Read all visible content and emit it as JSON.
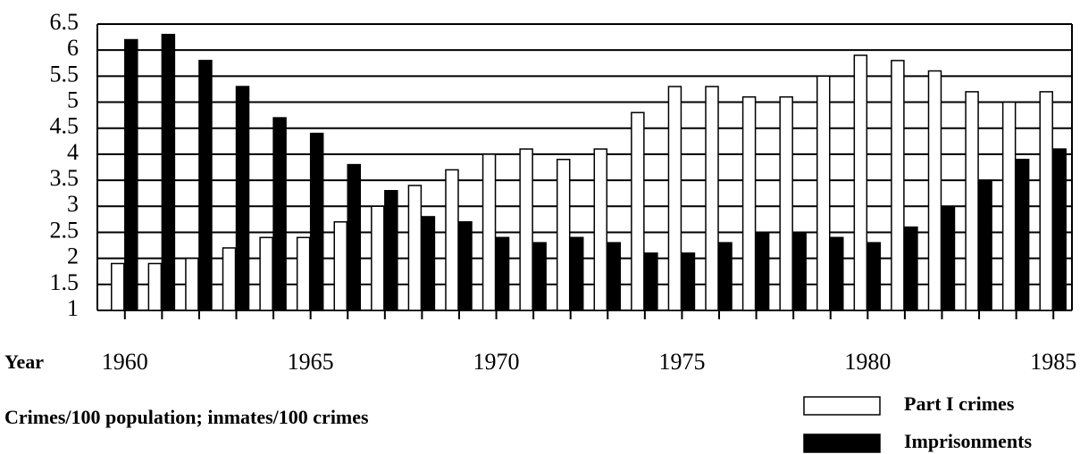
{
  "chart_data": {
    "type": "bar",
    "x_label": "Year",
    "note": "Crimes/100 population; inmates/100 crimes",
    "categories": [
      "1960",
      null,
      null,
      null,
      null,
      "1965",
      null,
      null,
      null,
      null,
      "1970",
      null,
      null,
      null,
      null,
      "1975",
      null,
      null,
      null,
      null,
      "1980",
      null,
      null,
      null,
      null,
      "1985"
    ],
    "series": [
      {
        "name": "Part I crimes",
        "color": "#ffffff",
        "values": [
          1.9,
          1.9,
          2.0,
          2.2,
          2.4,
          2.4,
          2.7,
          3.0,
          3.4,
          3.7,
          4.0,
          4.1,
          3.9,
          4.1,
          4.8,
          5.3,
          5.3,
          5.1,
          5.1,
          5.5,
          5.9,
          5.8,
          5.6,
          5.2,
          5.0,
          5.2
        ]
      },
      {
        "name": "Imprisonments",
        "color": "#000000",
        "values": [
          6.2,
          6.3,
          5.8,
          5.3,
          4.7,
          4.4,
          3.8,
          3.3,
          2.8,
          2.7,
          2.4,
          2.3,
          2.4,
          2.3,
          2.1,
          2.1,
          2.3,
          2.5,
          2.5,
          2.4,
          2.3,
          2.6,
          3.0,
          3.5,
          3.9,
          4.1
        ]
      }
    ],
    "ylim": [
      1,
      6.5
    ],
    "yticks": [
      1,
      1.5,
      2,
      2.5,
      3,
      3.5,
      4,
      4.5,
      5,
      5.5,
      6,
      6.5
    ],
    "grid": true
  }
}
